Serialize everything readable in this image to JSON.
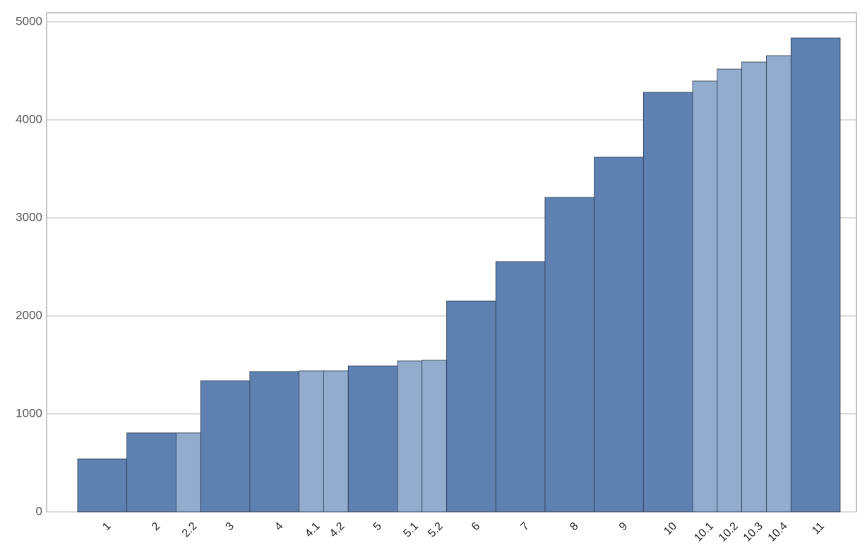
{
  "chart_data": {
    "type": "bar",
    "categories": [
      "1",
      "2",
      "2.2",
      "3",
      "4",
      "4.1",
      "4.2",
      "5",
      "5.1",
      "5.2",
      "6",
      "7",
      "8",
      "9",
      "10",
      "10.1",
      "10.2",
      "10.3",
      "10.4",
      "11"
    ],
    "values": [
      540,
      806,
      806,
      1338,
      1432,
      1439,
      1439,
      1489,
      1540,
      1547,
      2151,
      2554,
      3209,
      3619,
      4281,
      4396,
      4518,
      4590,
      4655,
      4835
    ],
    "widths": [
      1,
      1,
      0.5,
      1,
      1,
      0.5,
      0.5,
      1,
      0.5,
      0.5,
      1,
      1,
      1,
      1,
      1,
      0.5,
      0.5,
      0.5,
      0.5,
      1
    ],
    "colors": [
      "#5f81b1",
      "#5f81b1",
      "#93acce",
      "#5f81b1",
      "#5f81b1",
      "#93acce",
      "#93acce",
      "#5f81b1",
      "#93acce",
      "#93acce",
      "#5f81b1",
      "#5f81b1",
      "#5f81b1",
      "#5f81b1",
      "#5f81b1",
      "#93acce",
      "#93acce",
      "#93acce",
      "#93acce",
      "#5f81b1"
    ],
    "ylim": [
      0,
      5000
    ],
    "yticks": [
      0,
      1000,
      2000,
      3000,
      4000,
      5000
    ],
    "grid": true
  }
}
